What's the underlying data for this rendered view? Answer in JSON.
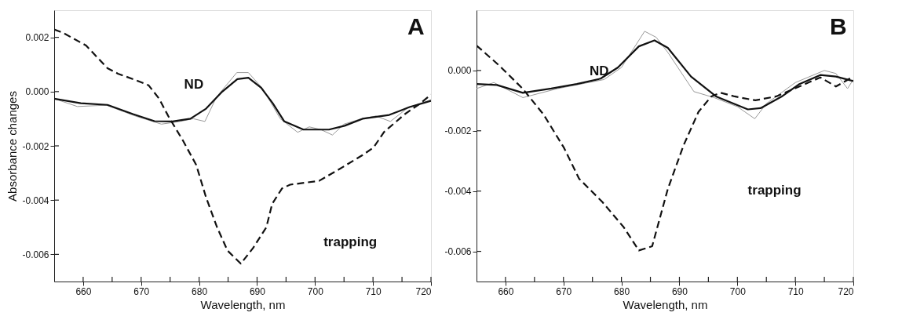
{
  "chart_data": [
    {
      "type": "line",
      "xlabel": "Wavelength, nm",
      "ylabel": "Absorbance changes",
      "xlim": [
        655,
        720
      ],
      "ylim": [
        -0.007,
        0.003
      ],
      "xticks": [
        660,
        {
          "value": 665,
          "label": null
        },
        670,
        {
          "value": 675,
          "label": null
        },
        680,
        {
          "value": 685,
          "label": null
        },
        690,
        {
          "value": 695,
          "label": null
        },
        700,
        {
          "value": 705,
          "label": null
        },
        710,
        {
          "value": 715,
          "label": null
        },
        720
      ],
      "yticks": [
        -0.006,
        -0.004,
        -0.002,
        {
          "value": 0,
          "label": "0.000"
        },
        0.002
      ],
      "grid": false,
      "annotations": [
        "A",
        "ND",
        "trapping"
      ],
      "series": [
        {
          "color": "#999999",
          "line_style": "solid",
          "x": [
            655,
            659,
            664,
            669,
            673.5,
            676.7,
            679,
            681,
            683,
            686.5,
            688.5,
            691,
            694,
            697,
            699,
            701,
            703,
            705,
            708,
            710.5,
            713,
            716,
            720
          ],
          "values": [
            -0.00026,
            -0.00055,
            -0.0005,
            -0.0009,
            -0.0012,
            -0.0011,
            -0.001,
            -0.0011,
            -0.0002,
            0.0007,
            0.0007,
            0.0001,
            -0.001,
            -0.0015,
            -0.0013,
            -0.0014,
            -0.0016,
            -0.0012,
            -0.001,
            -0.0009,
            -0.0011,
            -0.0006,
            -0.0003
          ]
        },
        {
          "color": "#111111",
          "line_style": "solid",
          "x": [
            655,
            659.6,
            664.2,
            668.6,
            672.3,
            675.4,
            678.5,
            681.2,
            684,
            686.6,
            688.5,
            690.7,
            692.7,
            694.7,
            698,
            702.4,
            705.1,
            708.2,
            712.8,
            716.3,
            720
          ],
          "values": [
            -0.00026,
            -0.00043,
            -0.00049,
            -0.00083,
            -0.00109,
            -0.0011,
            -0.001,
            -0.00063,
            0.0,
            0.00046,
            0.00051,
            0.00014,
            -0.00043,
            -0.0011,
            -0.0014,
            -0.0014,
            -0.00126,
            -0.001,
            -0.00086,
            -0.00057,
            -0.00034
          ]
        },
        {
          "color": "#111111",
          "line_style": "dashed",
          "x": [
            655,
            656.5,
            660.5,
            664.2,
            666,
            669,
            671.3,
            673.1,
            674.7,
            677.2,
            679.5,
            681.2,
            683.1,
            684.9,
            687.2,
            689.3,
            691.6,
            692.6,
            694.3,
            695.7,
            700.7,
            703.8,
            708.2,
            710.1,
            711.9,
            715.5,
            718.2,
            720
          ],
          "values": [
            0.00229,
            0.00217,
            0.0017,
            0.00086,
            0.00066,
            0.00043,
            0.00023,
            -0.00026,
            -0.00091,
            -0.0018,
            -0.0027,
            -0.0039,
            -0.005,
            -0.00586,
            -0.00634,
            -0.00577,
            -0.005,
            -0.00414,
            -0.00357,
            -0.00343,
            -0.00329,
            -0.00291,
            -0.00234,
            -0.00206,
            -0.00149,
            -0.00083,
            -0.00043,
            -0.00011
          ]
        }
      ]
    },
    {
      "type": "line",
      "xlabel": "Wavelength, nm",
      "xlim": [
        655,
        720
      ],
      "ylim": [
        -0.007,
        0.002
      ],
      "xticks": [
        660,
        {
          "value": 665,
          "label": null
        },
        670,
        {
          "value": 675,
          "label": null
        },
        680,
        {
          "value": 685,
          "label": null
        },
        690,
        {
          "value": 695,
          "label": null
        },
        700,
        {
          "value": 705,
          "label": null
        },
        710,
        {
          "value": 715,
          "label": null
        },
        720
      ],
      "yticks": [
        -0.006,
        -0.004,
        -0.002,
        {
          "value": 0,
          "label": "0.000"
        }
      ],
      "grid": false,
      "annotations": [
        "B",
        "ND",
        "trapping"
      ],
      "series": [
        {
          "color": "#999999",
          "line_style": "solid",
          "x": [
            655,
            658,
            663,
            669,
            673,
            677,
            680,
            684,
            686,
            688,
            692.5,
            696,
            700,
            703,
            705,
            710,
            715,
            717,
            719,
            720
          ],
          "values": [
            -0.0006,
            -0.0004,
            -0.0009,
            -0.0006,
            -0.00045,
            -0.0003,
            0.0001,
            0.0013,
            0.0011,
            0.0006,
            -0.0007,
            -0.0009,
            -0.0012,
            -0.0016,
            -0.0011,
            -0.0004,
            0.0,
            -0.0001,
            -0.0006,
            -0.0003
          ]
        },
        {
          "color": "#111111",
          "line_style": "solid",
          "x": [
            655,
            658.5,
            663,
            667.9,
            672.3,
            676.4,
            679.4,
            683,
            685.7,
            688,
            692,
            696.4,
            701.8,
            704,
            707.6,
            710.7,
            714.3,
            717,
            720
          ],
          "values": [
            -0.00045,
            -0.00048,
            -0.00074,
            -0.0006,
            -0.00045,
            -0.00027,
            0.0001,
            0.0008,
            0.001,
            0.00075,
            -0.0002,
            -0.00087,
            -0.00129,
            -0.00125,
            -0.00087,
            -0.00045,
            -0.00015,
            -0.0002,
            -0.00035
          ]
        },
        {
          "color": "#111111",
          "line_style": "dashed",
          "x": [
            655,
            659,
            663,
            666.6,
            670.1,
            672.7,
            676.7,
            680.4,
            683,
            685.3,
            688,
            690.7,
            693.3,
            695.5,
            697.1,
            699.5,
            703.1,
            706.7,
            710.7,
            714.3,
            717,
            720
          ],
          "values": [
            0.00083,
            0.00015,
            -0.00061,
            -0.00147,
            -0.00257,
            -0.00359,
            -0.00436,
            -0.0052,
            -0.00597,
            -0.00583,
            -0.00393,
            -0.00249,
            -0.00137,
            -0.00086,
            -0.00074,
            -0.00086,
            -0.00099,
            -0.00086,
            -0.00053,
            -0.00023,
            -0.00053,
            -0.0002
          ]
        }
      ]
    }
  ]
}
